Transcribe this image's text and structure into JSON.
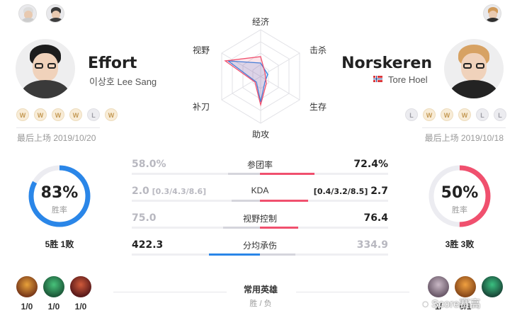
{
  "left_player": {
    "name": "Effort",
    "real_name": "이상호 Lee Sang",
    "recent": [
      "W",
      "W",
      "W",
      "W",
      "L",
      "W"
    ],
    "last_played": "最后上场 2019/10/20",
    "win_rate": "83%",
    "win_rate_value": 0.83,
    "win_rate_label": "胜率",
    "record": "5胜 1败",
    "heroes": [
      {
        "name": "hero-1",
        "score": "1/0"
      },
      {
        "name": "hero-2",
        "score": "1/0"
      },
      {
        "name": "hero-3",
        "score": "1/0"
      }
    ],
    "color": "#2a86e8"
  },
  "right_player": {
    "name": "Norskeren",
    "real_name": "Tore Hoel",
    "recent": [
      "L",
      "W",
      "W",
      "W",
      "L",
      "L"
    ],
    "last_played": "最后上场 2019/10/18",
    "win_rate": "50%",
    "win_rate_value": 0.5,
    "win_rate_label": "胜率",
    "record": "3胜 3败",
    "heroes": [
      {
        "name": "hero-1",
        "score": "1/"
      },
      {
        "name": "hero-2",
        "score": "0/1"
      },
      {
        "name": "hero-3",
        "score": ""
      }
    ],
    "color": "#f0506e"
  },
  "radar": {
    "labels": {
      "top": "经济",
      "top_right": "击杀",
      "bottom_right": "生存",
      "bottom": "助攻",
      "bottom_left": "补刀",
      "top_left": "视野"
    }
  },
  "stats": [
    {
      "name": "参团率",
      "left": "58.0%",
      "right": "72.4%",
      "left_fill": 0.5,
      "right_fill": 0.85,
      "leader": "right"
    },
    {
      "name": "KDA",
      "left": "2.0",
      "left_detail": "[0.3/4.3/8.6]",
      "right": "2.7",
      "right_detail": "[0.4/3.2/8.5]",
      "left_fill": 0.45,
      "right_fill": 0.75,
      "leader": "right"
    },
    {
      "name": "视野控制",
      "left": "75.0",
      "right": "76.4",
      "left_fill": 0.58,
      "right_fill": 0.6,
      "leader": "right"
    },
    {
      "name": "分均承伤",
      "left": "422.3",
      "right": "334.9",
      "left_fill": 0.8,
      "right_fill": 0.55,
      "leader": "left"
    }
  ],
  "common_heroes": {
    "title": "常用英雄",
    "subtitle": "胜 / 负"
  },
  "watermark": "Score赛高"
}
